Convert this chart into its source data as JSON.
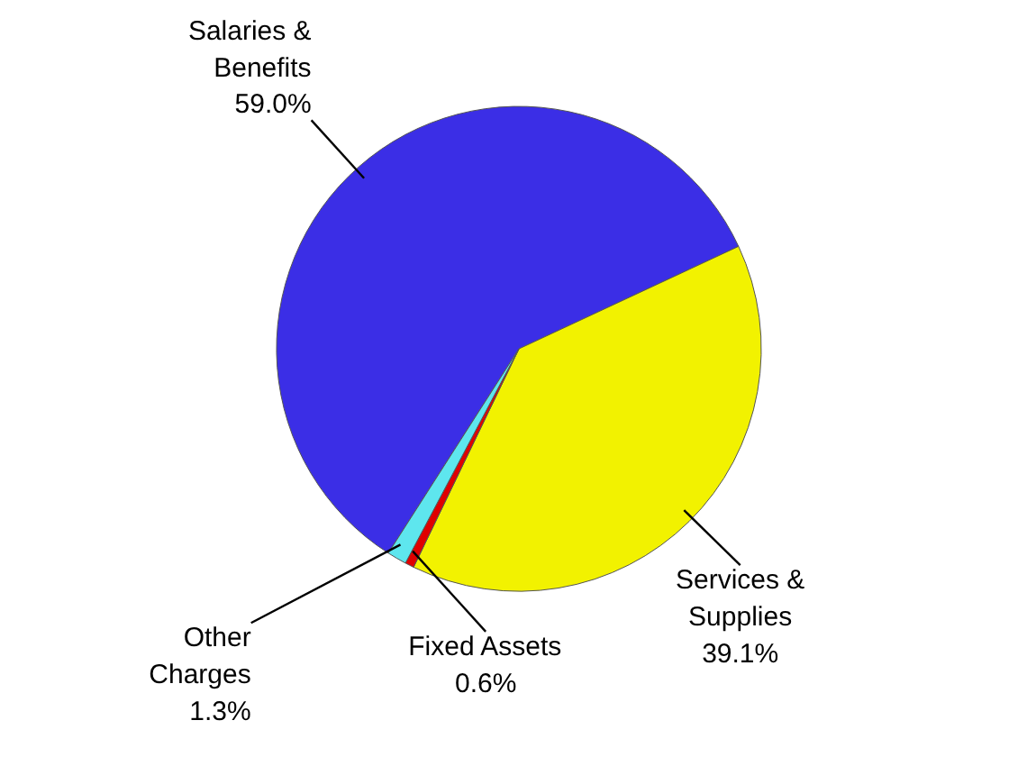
{
  "chart_data": {
    "type": "pie",
    "categories": [
      "Salaries & Benefits",
      "Services & Supplies",
      "Fixed Assets",
      "Other Charges"
    ],
    "values": [
      59.0,
      39.1,
      0.6,
      1.3
    ],
    "colors": [
      "#3b2ee6",
      "#f2f200",
      "#e00000",
      "#5ee6ee"
    ],
    "value_labels": [
      "59.0%",
      "39.1%",
      "0.6%",
      "1.3%"
    ]
  }
}
